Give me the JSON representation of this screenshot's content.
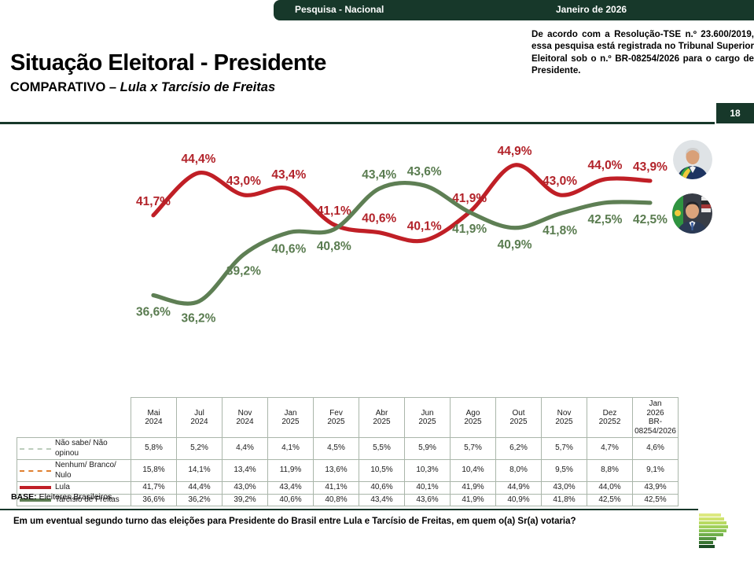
{
  "header_bar": {
    "left_label": "Pesquisa - Nacional",
    "right_label": "Janeiro de 2026",
    "bg_color": "#17382a"
  },
  "tse_note": "De acordo com a Resolução-TSE n.º 23.600/2019, essa pesquisa está registrada no Tribunal Superior Eleitoral sob o n.º BR-08254/2026 para o cargo de Presidente.",
  "title": "Situação Eleitoral - Presidente",
  "subtitle_prefix": "COMPARATIVO – ",
  "subtitle_italic": "Lula x Tarcísio de Freitas",
  "page_number": "18",
  "accent_color": "#17382a",
  "chart_data": {
    "type": "line",
    "title": "Situação Eleitoral - Presidente — Comparativo Lula x Tarcísio de Freitas",
    "categories": [
      "Mai\n2024",
      "Jul\n2024",
      "Nov\n2024",
      "Jan\n2025",
      "Fev\n2025",
      "Abr\n2025",
      "Jun\n2025",
      "Ago\n2025",
      "Out\n2025",
      "Nov\n2025",
      "Dez\n20252",
      "Jan\n2026\nBR-\n08254/2026"
    ],
    "series": [
      {
        "name": "Não sabe/ Não opinou",
        "marker": "dashed",
        "color": "#bccdbc",
        "plotted": false,
        "values": [
          5.8,
          5.2,
          4.4,
          4.1,
          4.5,
          5.5,
          5.9,
          5.7,
          6.2,
          5.7,
          4.7,
          4.6
        ]
      },
      {
        "name": "Nenhum/ Branco/ Nulo",
        "marker": "dashed",
        "color": "#e08030",
        "plotted": false,
        "values": [
          15.8,
          14.1,
          13.4,
          11.9,
          13.6,
          10.5,
          10.3,
          10.4,
          8.0,
          9.5,
          8.8,
          9.1
        ]
      },
      {
        "name": "Lula",
        "marker": "solid",
        "color": "#c01f26",
        "label_color": "#b2232a",
        "plotted": true,
        "values": [
          41.7,
          44.4,
          43.0,
          43.4,
          41.1,
          40.6,
          40.1,
          41.9,
          44.9,
          43.0,
          44.0,
          43.9
        ]
      },
      {
        "name": "Tarcísio de Freitas",
        "marker": "solid",
        "color": "#5e7f54",
        "label_color": "#5a7c50",
        "plotted": true,
        "values": [
          36.6,
          36.2,
          39.2,
          40.6,
          40.8,
          43.4,
          43.6,
          41.9,
          40.9,
          41.8,
          42.5,
          42.5
        ]
      }
    ],
    "ylim": [
      35,
      46
    ],
    "grid": false,
    "data_labels": true,
    "value_format": "comma-percent",
    "legend_position": "table-left"
  },
  "base_label": "BASE:",
  "base_value": "Eleitores Brasileiros",
  "question": "Em um eventual segundo turno das eleições para Presidente do Brasil entre Lula e Tarcísio de Freitas, em quem o(a) Sr(a) votaria?",
  "logo": {
    "name": "parana-pesquisas-logo",
    "bar_colors": [
      "#dde981",
      "#cfe36e",
      "#b8da62",
      "#a0d05b",
      "#89c253",
      "#6fae4b",
      "#549540",
      "#377331",
      "#1b4d24"
    ]
  }
}
